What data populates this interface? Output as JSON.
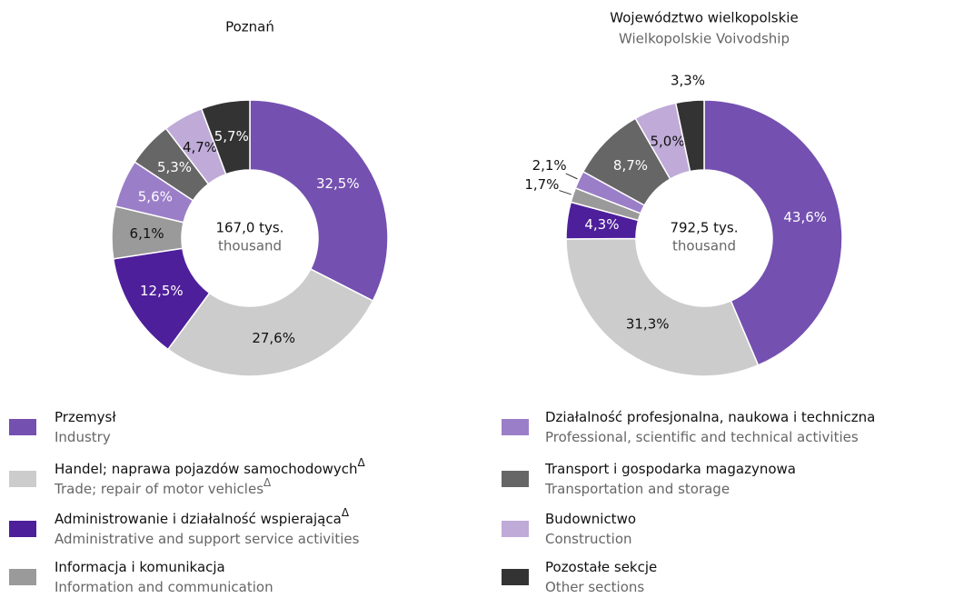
{
  "chart_data": [
    {
      "type": "pie",
      "title": "Poznań",
      "center_text": "167,0 tys.",
      "center_text_en": "thousand",
      "values": [
        32.5,
        27.6,
        12.5,
        6.1,
        5.6,
        5.3,
        4.7,
        5.7
      ],
      "value_labels": [
        "32,5%",
        "27,6%",
        "12,5%",
        "6,1%",
        "5,6%",
        "5,3%",
        "4,7%",
        "5,7%"
      ]
    },
    {
      "type": "pie",
      "title": "Województwo wielkopolskie",
      "subtitle": "Wielkopolskie Voivodship",
      "center_text": "792,5 tys.",
      "center_text_en": "thousand",
      "values": [
        43.6,
        31.3,
        4.3,
        1.7,
        2.1,
        8.7,
        5.0,
        3.3
      ],
      "value_labels": [
        "43,6%",
        "31,3%",
        "4,3%",
        "1,7%",
        "2,1%",
        "8,7%",
        "5,0%",
        "3,3%"
      ]
    }
  ],
  "legend": {
    "items": [
      {
        "label": "Przemysł",
        "label_en": "Industry",
        "color": "#7450b0"
      },
      {
        "label": "Handel; naprawa pojazdów samochodowych",
        "label_en": "Trade; repair of motor vehicles",
        "note": "Δ",
        "note_en": "Δ",
        "color": "#cccccc"
      },
      {
        "label": "Administrowanie i działalność wspierająca",
        "label_en": "Administrative and support service activities",
        "note": "Δ",
        "color": "#4e1f9b"
      },
      {
        "label": "Informacja i komunikacja",
        "label_en": "Information and communication",
        "color": "#9a9a9a"
      },
      {
        "label": "Działalność profesjonalna, naukowa i techniczna",
        "label_en": "Professional, scientific and technical activities",
        "color": "#9b7ec8"
      },
      {
        "label": "Transport i gospodarka magazynowa",
        "label_en": "Transportation and storage",
        "color": "#666666"
      },
      {
        "label": "Budownictwo",
        "label_en": "Construction",
        "color": "#bfaad8"
      },
      {
        "label": "Pozostałe sekcje",
        "label_en": "Other sections",
        "color": "#333333"
      }
    ]
  }
}
